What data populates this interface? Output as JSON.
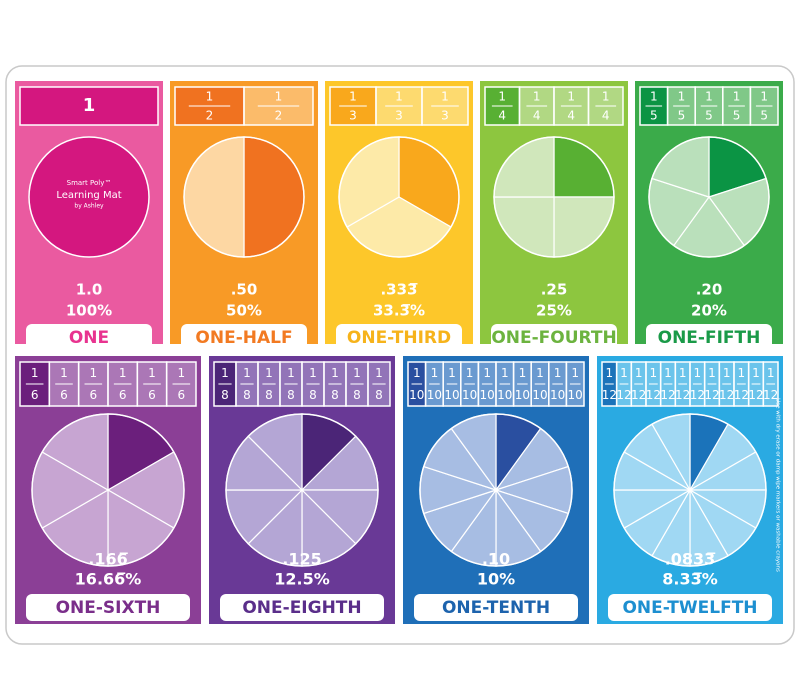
{
  "brand": {
    "line1": "Smart Poly™",
    "line2": "Learning Mat",
    "line3": "by Ashley"
  },
  "note": "Use with dry erase or damp wipe markers or washable crayons",
  "cards": [
    {
      "numerator": 1,
      "decimal": "1.0",
      "percent": "100%",
      "name": "ONE"
    },
    {
      "numerator": 1,
      "denominator": 2,
      "decimal": ".50",
      "percent": "50%",
      "name": "ONE-HALF"
    },
    {
      "numerator": 1,
      "denominator": 3,
      "decimal": ".333̅",
      "percent": "33.3̅%",
      "name": "ONE-THIRD"
    },
    {
      "numerator": 1,
      "denominator": 4,
      "decimal": ".25",
      "percent": "25%",
      "name": "ONE-FOURTH"
    },
    {
      "numerator": 1,
      "denominator": 5,
      "decimal": ".20",
      "percent": "20%",
      "name": "ONE-FIFTH"
    },
    {
      "numerator": 1,
      "denominator": 6,
      "decimal": ".166̅",
      "percent": "16.66̅%",
      "name": "ONE-SIXTH"
    },
    {
      "numerator": 1,
      "denominator": 8,
      "decimal": ".125",
      "percent": "12.5%",
      "name": "ONE-EIGHTH"
    },
    {
      "numerator": 1,
      "denominator": 10,
      "decimal": ".10",
      "percent": "10%",
      "name": "ONE-TENTH"
    },
    {
      "numerator": 1,
      "denominator": 12,
      "decimal": ".0833̅",
      "percent": "8.33̅%",
      "name": "ONE-TWELFTH"
    }
  ]
}
